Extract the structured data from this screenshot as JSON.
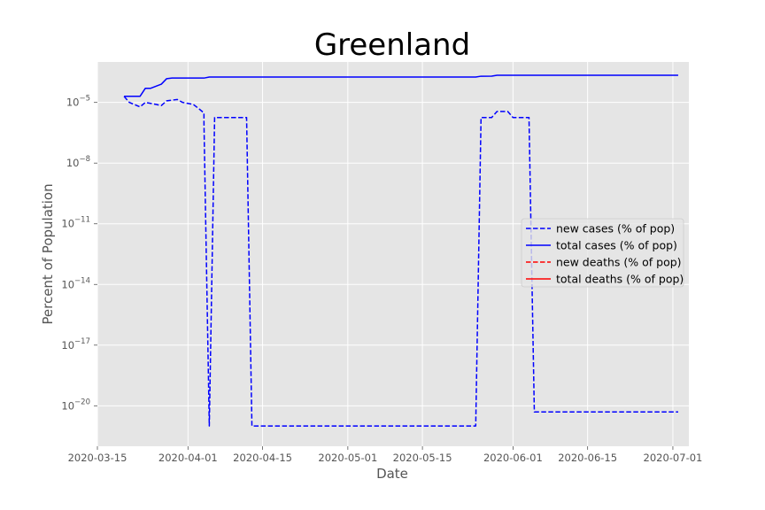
{
  "chart_data": {
    "type": "line",
    "title": "Greenland",
    "xlabel": "Date",
    "ylabel": "Percent of Population",
    "yscale": "log",
    "ylim": [
      1e-22,
      0.001
    ],
    "xlim": [
      "2020-03-15",
      "2020-07-04"
    ],
    "grid": true,
    "legend_position": "center-right",
    "x_ticks": [
      "2020-03-15",
      "2020-04-01",
      "2020-04-15",
      "2020-05-01",
      "2020-05-15",
      "2020-06-01",
      "2020-06-15",
      "2020-07-01"
    ],
    "y_ticks": [
      {
        "value": 1e-05,
        "base": "10",
        "exp": "−5"
      },
      {
        "value": 1e-08,
        "base": "10",
        "exp": "−8"
      },
      {
        "value": 1e-11,
        "base": "10",
        "exp": "−11"
      },
      {
        "value": 1e-14,
        "base": "10",
        "exp": "−14"
      },
      {
        "value": 1e-17,
        "base": "10",
        "exp": "−17"
      },
      {
        "value": 1e-20,
        "base": "10",
        "exp": "−20"
      }
    ],
    "series": [
      {
        "name": "new cases (% of pop)",
        "color": "#0000ff",
        "style": "dashed",
        "points": [
          [
            "2020-03-20",
            2e-05
          ],
          [
            "2020-03-21",
            1e-05
          ],
          [
            "2020-03-23",
            6e-06
          ],
          [
            "2020-03-24",
            1e-05
          ],
          [
            "2020-03-26",
            8e-06
          ],
          [
            "2020-03-27",
            7e-06
          ],
          [
            "2020-03-28",
            1.2e-05
          ],
          [
            "2020-03-30",
            1.4e-05
          ],
          [
            "2020-03-31",
            1e-05
          ],
          [
            "2020-04-02",
            8e-06
          ],
          [
            "2020-04-03",
            5e-06
          ],
          [
            "2020-04-04",
            3e-06
          ],
          [
            "2020-04-04",
            1e-06
          ],
          [
            "2020-04-05",
            1e-21
          ],
          [
            "2020-04-06",
            1.8e-06
          ],
          [
            "2020-04-12",
            1.8e-06
          ],
          [
            "2020-04-13",
            1e-21
          ],
          [
            "2020-05-25",
            1e-21
          ],
          [
            "2020-05-26",
            1.8e-06
          ],
          [
            "2020-05-28",
            1.8e-06
          ],
          [
            "2020-05-29",
            3.6e-06
          ],
          [
            "2020-05-31",
            3.6e-06
          ],
          [
            "2020-06-01",
            1.8e-06
          ],
          [
            "2020-06-04",
            1.8e-06
          ],
          [
            "2020-06-05",
            5e-21
          ],
          [
            "2020-07-02",
            5e-21
          ]
        ]
      },
      {
        "name": "total cases (% of pop)",
        "color": "#0000ff",
        "style": "solid",
        "points": [
          [
            "2020-03-20",
            2e-05
          ],
          [
            "2020-03-23",
            2e-05
          ],
          [
            "2020-03-24",
            5e-05
          ],
          [
            "2020-03-25",
            5e-05
          ],
          [
            "2020-03-27",
            8e-05
          ],
          [
            "2020-03-28",
            0.00015
          ],
          [
            "2020-03-29",
            0.00016
          ],
          [
            "2020-04-04",
            0.00016
          ],
          [
            "2020-04-05",
            0.00018
          ],
          [
            "2020-05-25",
            0.00018
          ],
          [
            "2020-05-26",
            0.000198
          ],
          [
            "2020-05-28",
            0.0002
          ],
          [
            "2020-05-29",
            0.00022
          ],
          [
            "2020-07-02",
            0.00022
          ]
        ]
      },
      {
        "name": "new deaths (% of pop)",
        "color": "#ff0000",
        "style": "dashed",
        "points": []
      },
      {
        "name": "total deaths (% of pop)",
        "color": "#ff0000",
        "style": "solid",
        "points": []
      }
    ]
  }
}
